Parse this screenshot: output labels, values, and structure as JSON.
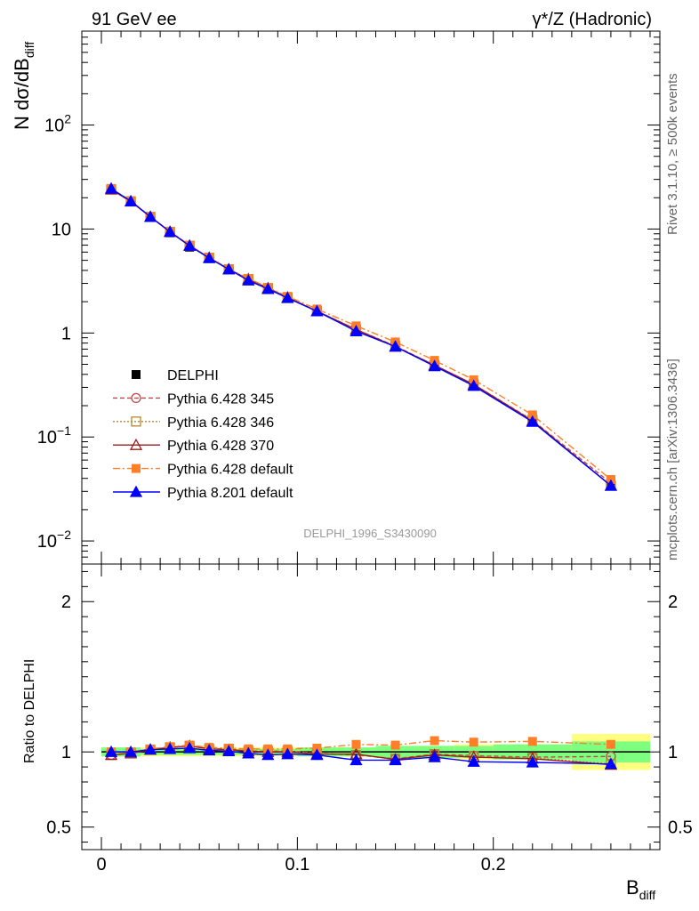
{
  "header": {
    "left_title": "91 GeV ee",
    "right_title": "γ*/Z (Hadronic)"
  },
  "side_labels": {
    "rivet": "Rivet 3.1.10, ≥ 500k events",
    "mcplots": "mcplots.cern.ch [arXiv:1306.3436]"
  },
  "colors": {
    "data": "#000000",
    "p345": "#c04848",
    "p346": "#b8862e",
    "p370": "#9b1b1b",
    "p6def": "#ff7f28",
    "p8def": "#0000ff",
    "band_inner": "#7fff7f",
    "band_outer": "#ffff7f"
  },
  "chart_data": [
    {
      "type": "line",
      "title": "",
      "analysis_label": "DELPHI_1996_S3430090",
      "xlabel": "B",
      "xlabel_sub": "diff",
      "ylabel_main": "N dσ/dB",
      "ylabel_sub": "diff",
      "yscale": "log",
      "xlim": [
        -0.01,
        0.285
      ],
      "ylim": [
        0.006,
        800
      ],
      "y_ticks": [
        {
          "value": 0.01,
          "base": "10",
          "exp": "−2"
        },
        {
          "value": 0.1,
          "base": "10",
          "exp": "−1"
        },
        {
          "value": 1,
          "base": "1",
          "exp": ""
        },
        {
          "value": 10,
          "base": "10",
          "exp": ""
        },
        {
          "value": 100,
          "base": "10",
          "exp": "2"
        }
      ],
      "x": [
        0.005,
        0.015,
        0.025,
        0.035,
        0.045,
        0.055,
        0.065,
        0.075,
        0.085,
        0.095,
        0.11,
        0.13,
        0.15,
        0.17,
        0.19,
        0.22,
        0.26
      ],
      "series": [
        {
          "name": "DELPHI",
          "key": "data",
          "values": [
            24.5,
            18.6,
            12.9,
            9.2,
            6.7,
            5.2,
            4.05,
            3.25,
            2.7,
            2.2,
            1.65,
            1.1,
            0.78,
            0.5,
            0.33,
            0.15,
            0.037
          ]
        },
        {
          "name": "Pythia 6.428 345",
          "key": "p345",
          "values": [
            24.0,
            18.5,
            13.1,
            9.4,
            6.9,
            5.3,
            4.1,
            3.3,
            2.7,
            2.2,
            1.63,
            1.08,
            0.75,
            0.49,
            0.32,
            0.145,
            0.036
          ]
        },
        {
          "name": "Pythia 6.428 346",
          "key": "p346",
          "values": [
            24.0,
            18.5,
            13.1,
            9.4,
            6.9,
            5.3,
            4.1,
            3.3,
            2.7,
            2.2,
            1.63,
            1.08,
            0.75,
            0.49,
            0.32,
            0.145,
            0.034
          ]
        },
        {
          "name": "Pythia 6.428 370",
          "key": "p370",
          "values": [
            24.0,
            18.4,
            13.1,
            9.4,
            6.9,
            5.3,
            4.1,
            3.3,
            2.7,
            2.2,
            1.62,
            1.08,
            0.74,
            0.49,
            0.32,
            0.143,
            0.034
          ]
        },
        {
          "name": "Pythia 6.428 default",
          "key": "p6def",
          "values": [
            24.5,
            18.7,
            13.2,
            9.5,
            7.0,
            5.35,
            4.15,
            3.35,
            2.75,
            2.25,
            1.7,
            1.17,
            0.82,
            0.545,
            0.355,
            0.163,
            0.039
          ]
        },
        {
          "name": "Pythia 8.201 default",
          "key": "p8def",
          "values": [
            24.5,
            18.5,
            13.1,
            9.4,
            6.9,
            5.25,
            4.1,
            3.2,
            2.65,
            2.17,
            1.62,
            1.04,
            0.74,
            0.48,
            0.31,
            0.14,
            0.034
          ]
        }
      ]
    },
    {
      "type": "line",
      "title": "",
      "xlabel": "B",
      "xlabel_sub": "diff",
      "ylabel": "Ratio to DELPHI",
      "xlim": [
        -0.01,
        0.285
      ],
      "ylim": [
        0.35,
        2.25
      ],
      "y_ticks": [
        0.5,
        1,
        2
      ],
      "x_ticks": [
        0,
        0.1,
        0.2
      ],
      "x_tick_labels": [
        "0",
        "0.1",
        "0.2"
      ],
      "x": [
        0.005,
        0.015,
        0.025,
        0.035,
        0.045,
        0.055,
        0.065,
        0.075,
        0.085,
        0.095,
        0.11,
        0.13,
        0.15,
        0.17,
        0.19,
        0.22,
        0.26
      ],
      "band": {
        "x_edges": [
          0.0,
          0.01,
          0.02,
          0.03,
          0.04,
          0.05,
          0.06,
          0.07,
          0.08,
          0.09,
          0.1,
          0.12,
          0.14,
          0.16,
          0.18,
          0.2,
          0.24,
          0.28
        ],
        "inner": [
          0.03,
          0.03,
          0.02,
          0.02,
          0.02,
          0.02,
          0.02,
          0.02,
          0.02,
          0.02,
          0.03,
          0.03,
          0.04,
          0.04,
          0.04,
          0.05,
          0.07
        ],
        "outer": [
          0.03,
          0.03,
          0.03,
          0.03,
          0.03,
          0.03,
          0.03,
          0.03,
          0.03,
          0.03,
          0.03,
          0.03,
          0.04,
          0.04,
          0.05,
          0.05,
          0.12
        ]
      },
      "series": [
        {
          "name": "Pythia 6.428 345",
          "key": "p345",
          "values": [
            0.98,
            0.995,
            1.015,
            1.03,
            1.04,
            1.02,
            1.02,
            1.005,
            1.005,
            1.005,
            0.99,
            0.98,
            0.955,
            0.985,
            0.975,
            0.965,
            0.97
          ]
        },
        {
          "name": "Pythia 6.428 346",
          "key": "p346",
          "values": [
            0.98,
            0.995,
            1.015,
            1.03,
            1.04,
            1.02,
            1.02,
            1.005,
            1.005,
            1.005,
            0.99,
            0.98,
            0.955,
            0.985,
            0.97,
            0.96,
            0.92
          ]
        },
        {
          "name": "Pythia 6.428 370",
          "key": "p370",
          "values": [
            0.98,
            0.99,
            1.015,
            1.03,
            1.04,
            1.02,
            1.015,
            1.005,
            1.0,
            1.0,
            0.985,
            0.985,
            0.95,
            0.98,
            0.965,
            0.955,
            0.915
          ]
        },
        {
          "name": "Pythia 6.428 default",
          "key": "p6def",
          "values": [
            1.0,
            1.0,
            1.02,
            1.035,
            1.045,
            1.03,
            1.025,
            1.02,
            1.02,
            1.02,
            1.025,
            1.05,
            1.045,
            1.075,
            1.065,
            1.07,
            1.05
          ]
        },
        {
          "name": "Pythia 8.201 default",
          "key": "p8def",
          "values": [
            1.0,
            1.0,
            1.015,
            1.02,
            1.025,
            1.01,
            1.005,
            0.99,
            0.98,
            0.985,
            0.98,
            0.945,
            0.945,
            0.965,
            0.935,
            0.93,
            0.92
          ]
        }
      ]
    }
  ]
}
